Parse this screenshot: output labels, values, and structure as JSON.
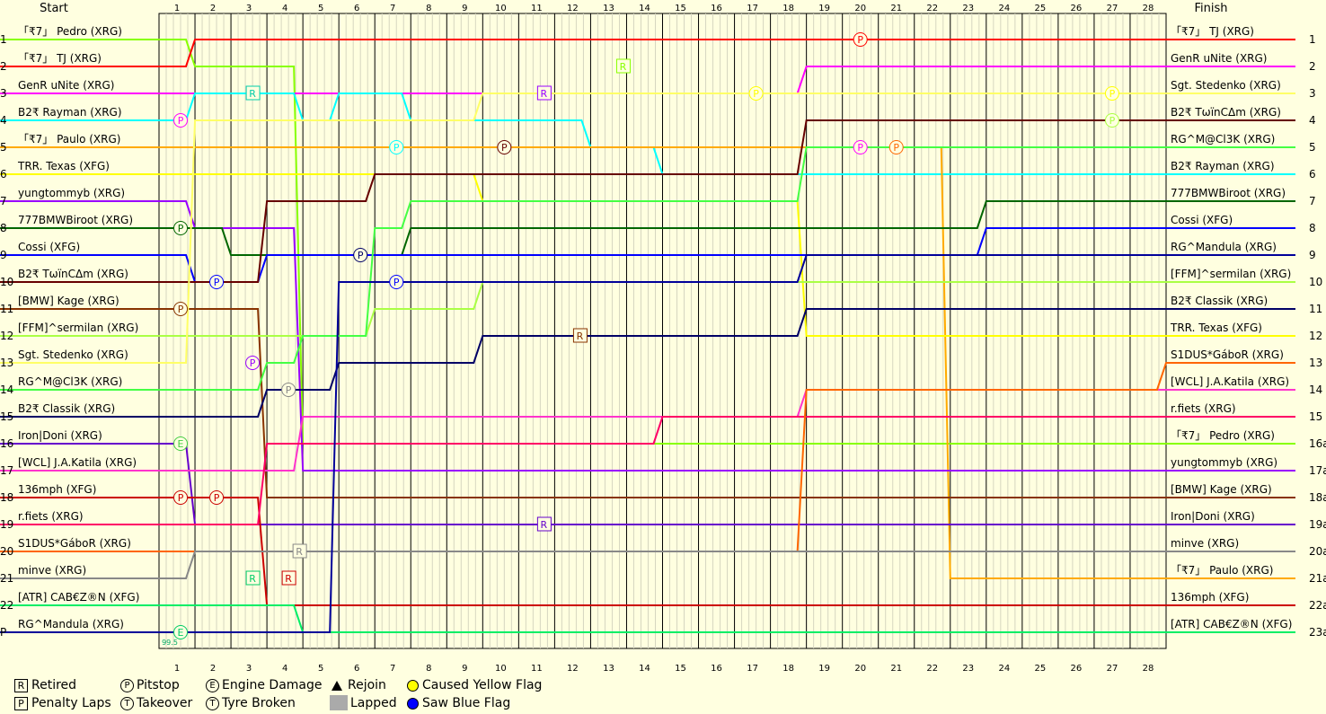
{
  "chart_data": {
    "type": "line",
    "title": "",
    "header": {
      "start": "Start",
      "finish": "Finish"
    },
    "laps": 28,
    "positions_left": [
      "1",
      "2",
      "3",
      "4",
      "5",
      "6",
      "7",
      "8",
      "9",
      "10",
      "11",
      "12",
      "13",
      "14",
      "15",
      "16",
      "17",
      "18",
      "19",
      "20",
      "21",
      "22",
      "P"
    ],
    "positions_right": [
      "1",
      "2",
      "3",
      "4",
      "5",
      "6",
      "7",
      "8",
      "9",
      "10",
      "11",
      "12",
      "13",
      "14",
      "15",
      "16a",
      "17a",
      "18a",
      "19a",
      "20a",
      "21a",
      "22a",
      "23a"
    ],
    "start_grid": [
      "「₹7」 Pedro (XRG)",
      "「₹7」 TJ (XRG)",
      "GenR uNite (XRG)",
      "B2₹ Rayman (XRG)",
      "「₹7」 Paulo (XRG)",
      "TRR. Texas (XFG)",
      "yungtommyb (XRG)",
      "777BMWBiroot (XRG)",
      "Cossi (XFG)",
      "B2₹ TωïnCΔm (XRG)",
      "[BMW] Kage (XRG)",
      "[FFM]^sermilan (XRG)",
      "Sgt. Stedenko (XRG)",
      "RG^M@Cl3K (XRG)",
      "B2₹ Classik (XRG)",
      "Iron|Doni (XRG)",
      "[WCL] J.A.Katila (XRG)",
      "136mph (XFG)",
      "r.fiets (XRG)",
      "S1DUS*GáboR (XRG)",
      "minve (XRG)",
      "[ATR] CAB€Z®N (XFG)",
      "RG^Mandula (XRG)"
    ],
    "finish_order": [
      "「₹7」 TJ (XRG)",
      "GenR uNite (XRG)",
      "Sgt. Stedenko (XRG)",
      "B2₹ TωïnCΔm (XRG)",
      "RG^M@Cl3K (XRG)",
      "B2₹ Rayman (XRG)",
      "777BMWBiroot (XRG)",
      "Cossi (XFG)",
      "RG^Mandula (XRG)",
      "[FFM]^sermilan (XRG)",
      "B2₹ Classik (XRG)",
      "TRR. Texas (XFG)",
      "S1DUS*GáboR (XRG)",
      "[WCL] J.A.Katila (XRG)",
      "r.fiets (XRG)",
      "「₹7」 Pedro (XRG)",
      "yungtommyb (XRG)",
      "[BMW] Kage (XRG)",
      "Iron|Doni (XRG)",
      "minve (XRG)",
      "「₹7」 Paulo (XRG)",
      "136mph (XFG)",
      "[ATR] CAB€Z®N (XFG)"
    ],
    "series": [
      {
        "color": "#88ff00",
        "positions": [
          1,
          2,
          2,
          2,
          16,
          16,
          16,
          16,
          16,
          16,
          16,
          16,
          16,
          16,
          16,
          16,
          16,
          16,
          16,
          16,
          16,
          16,
          16,
          16,
          16,
          16,
          16,
          16,
          16,
          16
        ]
      },
      {
        "color": "#ff0000",
        "positions": [
          2,
          1,
          1,
          1,
          1,
          1,
          1,
          1,
          1,
          1,
          1,
          1,
          1,
          1,
          1,
          1,
          1,
          1,
          1,
          1,
          1,
          1,
          1,
          1,
          1,
          1,
          1,
          1,
          1,
          1
        ]
      },
      {
        "color": "#ff00ff",
        "positions": [
          3,
          3,
          3,
          3,
          3,
          3,
          3,
          3,
          3,
          3,
          3,
          3,
          3,
          3,
          3,
          3,
          3,
          3,
          2,
          2,
          2,
          2,
          2,
          2,
          2,
          2,
          2,
          2,
          2,
          2
        ]
      },
      {
        "color": "#00ffff",
        "positions": [
          4,
          3,
          3,
          3,
          4,
          3,
          3,
          4,
          4,
          4,
          4,
          4,
          5,
          5,
          6,
          6,
          6,
          6,
          6,
          6,
          6,
          6,
          6,
          6,
          6,
          6,
          6,
          6,
          6,
          6
        ]
      },
      {
        "color": "#ffaa00",
        "positions": [
          5,
          5,
          5,
          5,
          5,
          5,
          5,
          5,
          5,
          5,
          5,
          5,
          5,
          5,
          5,
          5,
          5,
          5,
          5,
          5,
          5,
          5,
          21,
          21,
          21,
          21,
          21,
          21,
          21,
          21
        ]
      },
      {
        "color": "#ffff00",
        "positions": [
          6,
          6,
          6,
          6,
          6,
          6,
          6,
          6,
          6,
          7,
          7,
          7,
          7,
          7,
          7,
          7,
          7,
          7,
          12,
          12,
          12,
          12,
          12,
          12,
          12,
          12,
          12,
          12,
          12,
          12
        ]
      },
      {
        "color": "#9900ff",
        "positions": [
          7,
          8,
          8,
          8,
          17,
          17,
          17,
          17,
          17,
          17,
          17,
          17,
          17,
          17,
          17,
          17,
          17,
          17,
          17,
          17,
          17,
          17,
          17,
          17,
          17,
          17,
          17,
          17,
          17,
          17
        ]
      },
      {
        "color": "#006600",
        "positions": [
          8,
          8,
          9,
          9,
          9,
          9,
          9,
          8,
          8,
          8,
          8,
          8,
          8,
          8,
          8,
          8,
          8,
          8,
          8,
          8,
          8,
          8,
          8,
          7,
          7,
          7,
          7,
          7,
          7,
          7
        ]
      },
      {
        "color": "#0000ff",
        "positions": [
          9,
          10,
          10,
          9,
          9,
          9,
          9,
          9,
          9,
          9,
          9,
          9,
          9,
          9,
          9,
          9,
          9,
          9,
          9,
          9,
          9,
          9,
          9,
          8,
          8,
          8,
          8,
          8,
          8,
          8
        ]
      },
      {
        "color": "#660000",
        "positions": [
          10,
          10,
          10,
          7,
          7,
          7,
          6,
          6,
          6,
          6,
          6,
          6,
          6,
          6,
          6,
          6,
          6,
          6,
          4,
          4,
          4,
          4,
          4,
          4,
          4,
          4,
          4,
          4,
          4,
          4
        ]
      },
      {
        "color": "#883300",
        "positions": [
          11,
          11,
          11,
          18,
          18,
          18,
          18,
          18,
          18,
          18,
          18,
          18,
          18,
          18,
          18,
          18,
          18,
          18,
          18,
          18,
          18,
          18,
          18,
          18,
          18,
          18,
          18,
          18,
          18,
          18
        ]
      },
      {
        "color": "#aaff44",
        "positions": [
          12,
          12,
          12,
          12,
          12,
          12,
          11,
          11,
          11,
          10,
          10,
          10,
          10,
          10,
          10,
          10,
          10,
          10,
          10,
          10,
          10,
          10,
          10,
          10,
          10,
          10,
          10,
          10,
          10,
          10
        ]
      },
      {
        "color": "#ffff66",
        "positions": [
          13,
          4,
          4,
          4,
          4,
          4,
          4,
          4,
          4,
          3,
          3,
          3,
          3,
          3,
          3,
          3,
          3,
          3,
          3,
          3,
          3,
          3,
          3,
          3,
          3,
          3,
          3,
          3,
          3,
          3
        ]
      },
      {
        "color": "#44ff44",
        "positions": [
          14,
          14,
          14,
          13,
          12,
          12,
          8,
          7,
          7,
          7,
          7,
          7,
          7,
          7,
          7,
          7,
          7,
          7,
          5,
          5,
          5,
          5,
          5,
          5,
          5,
          5,
          5,
          5,
          5,
          5
        ]
      },
      {
        "color": "#000066",
        "positions": [
          15,
          15,
          15,
          14,
          14,
          13,
          13,
          13,
          13,
          12,
          12,
          12,
          12,
          12,
          12,
          12,
          12,
          12,
          11,
          11,
          11,
          11,
          11,
          11,
          11,
          11,
          11,
          11,
          11,
          11
        ]
      },
      {
        "color": "#6600cc",
        "positions": [
          16,
          19,
          19,
          19,
          19,
          19,
          19,
          19,
          19,
          19,
          19,
          19,
          19,
          19,
          19,
          19,
          19,
          19,
          19,
          19,
          19,
          19,
          19,
          19,
          19,
          19,
          19,
          19,
          19,
          19
        ]
      },
      {
        "color": "#ff33cc",
        "positions": [
          17,
          17,
          17,
          17,
          15,
          15,
          15,
          15,
          15,
          15,
          15,
          15,
          15,
          15,
          15,
          15,
          15,
          15,
          14,
          14,
          14,
          14,
          14,
          14,
          14,
          14,
          14,
          14,
          14,
          14
        ]
      },
      {
        "color": "#cc0000",
        "positions": [
          18,
          18,
          18,
          22,
          22,
          22,
          22,
          22,
          22,
          22,
          22,
          22,
          22,
          22,
          22,
          22,
          22,
          22,
          22,
          22,
          22,
          22,
          22,
          22,
          22,
          22,
          22,
          22,
          22,
          22
        ]
      },
      {
        "color": "#ff0066",
        "positions": [
          19,
          19,
          19,
          16,
          16,
          16,
          16,
          16,
          16,
          16,
          16,
          16,
          16,
          16,
          15,
          15,
          15,
          15,
          15,
          15,
          15,
          15,
          15,
          15,
          15,
          15,
          15,
          15,
          15,
          15
        ]
      },
      {
        "color": "#ff6600",
        "positions": [
          20,
          20,
          20,
          20,
          20,
          20,
          20,
          20,
          20,
          20,
          20,
          20,
          20,
          20,
          20,
          20,
          20,
          20,
          14,
          14,
          14,
          14,
          14,
          14,
          14,
          14,
          14,
          14,
          13,
          13
        ]
      },
      {
        "color": "#888888",
        "positions": [
          21,
          20,
          20,
          20,
          20,
          20,
          20,
          20,
          20,
          20,
          20,
          20,
          20,
          20,
          20,
          20,
          20,
          20,
          20,
          20,
          20,
          20,
          20,
          20,
          20,
          20,
          20,
          20,
          20,
          20
        ]
      },
      {
        "color": "#00ee66",
        "positions": [
          22,
          22,
          22,
          22,
          23,
          23,
          23,
          23,
          23,
          23,
          23,
          23,
          23,
          23,
          23,
          23,
          23,
          23,
          23,
          23,
          23,
          23,
          23,
          23,
          23,
          23,
          23,
          23,
          23,
          23
        ]
      },
      {
        "color": "#000099",
        "positions": [
          23,
          23,
          23,
          23,
          23,
          10,
          10,
          10,
          10,
          10,
          10,
          10,
          10,
          10,
          10,
          10,
          10,
          10,
          9,
          9,
          9,
          9,
          9,
          9,
          9,
          9,
          9,
          9,
          9,
          9
        ]
      }
    ],
    "events": [
      {
        "type": "P",
        "lap": 1.3,
        "pos": 4,
        "color": "#ff00ff"
      },
      {
        "type": "P",
        "lap": 1.3,
        "pos": 8,
        "color": "#006600"
      },
      {
        "type": "P",
        "lap": 1.3,
        "pos": 11,
        "color": "#883300"
      },
      {
        "type": "P",
        "lap": 1.3,
        "pos": 18,
        "color": "#cc0000"
      },
      {
        "type": "P",
        "lap": 2.3,
        "pos": 10,
        "color": "#0000ff"
      },
      {
        "type": "P",
        "lap": 2.3,
        "pos": 18,
        "color": "#cc0000"
      },
      {
        "type": "P",
        "lap": 3.3,
        "pos": 13,
        "color": "#9900ff"
      },
      {
        "type": "P",
        "lap": 4.3,
        "pos": 14,
        "color": "#888888"
      },
      {
        "type": "P",
        "lap": 6.3,
        "pos": 9,
        "color": "#000066"
      },
      {
        "type": "P",
        "lap": 7.3,
        "pos": 5,
        "color": "#00ffff"
      },
      {
        "type": "P",
        "lap": 7.3,
        "pos": 10,
        "color": "#0000ff"
      },
      {
        "type": "P",
        "lap": 10.3,
        "pos": 5,
        "color": "#660000"
      },
      {
        "type": "P",
        "lap": 17.3,
        "pos": 3,
        "color": "#ffff00"
      },
      {
        "type": "P",
        "lap": 20.2,
        "pos": 1,
        "color": "#ff0000"
      },
      {
        "type": "P",
        "lap": 20.2,
        "pos": 5,
        "color": "#ff00ff"
      },
      {
        "type": "P",
        "lap": 21.2,
        "pos": 5,
        "color": "#ff6600"
      },
      {
        "type": "P",
        "lap": 27.2,
        "pos": 3,
        "color": "#ffff00"
      },
      {
        "type": "P",
        "lap": 27.2,
        "pos": 4,
        "color": "#aaff44"
      },
      {
        "type": "R",
        "lap": 3.3,
        "pos": 3,
        "color": "#00ccaa"
      },
      {
        "type": "R",
        "lap": 11.4,
        "pos": 3,
        "color": "#9900ff"
      },
      {
        "type": "R",
        "lap": 11.4,
        "pos": 19,
        "color": "#6600cc"
      },
      {
        "type": "R",
        "lap": 12.4,
        "pos": 12,
        "color": "#883300"
      },
      {
        "type": "R",
        "lap": 13.6,
        "pos": 2,
        "color": "#88ff00"
      },
      {
        "type": "R",
        "lap": 4.6,
        "pos": 20,
        "color": "#888888"
      },
      {
        "type": "R",
        "lap": 3.3,
        "pos": 21,
        "color": "#00cc66"
      },
      {
        "type": "R",
        "lap": 4.3,
        "pos": 21,
        "color": "#cc0000"
      },
      {
        "type": "E",
        "lap": 1.3,
        "pos": 16,
        "color": "#44cc44"
      },
      {
        "type": "E",
        "lap": 1.3,
        "pos": 23,
        "color": "#00cc66"
      }
    ],
    "event_note": "99.5",
    "legend": [
      {
        "symbol": "R",
        "label": "Retired"
      },
      {
        "symbol": "P",
        "label": "Penalty Laps"
      },
      {
        "symbol": "P",
        "label": "Pitstop"
      },
      {
        "symbol": "T",
        "label": "Takeover"
      },
      {
        "symbol": "E",
        "label": "Engine Damage"
      },
      {
        "symbol": "T",
        "label": "Tyre Broken"
      },
      {
        "symbol": "triangle",
        "label": "Rejoin"
      },
      {
        "symbol": "grey",
        "label": "Lapped"
      },
      {
        "symbol": "yellow-dot",
        "label": "Caused Yellow Flag",
        "color": "#ffff00"
      },
      {
        "symbol": "blue-dot",
        "label": "Saw Blue Flag",
        "color": "#0000ff"
      }
    ]
  }
}
